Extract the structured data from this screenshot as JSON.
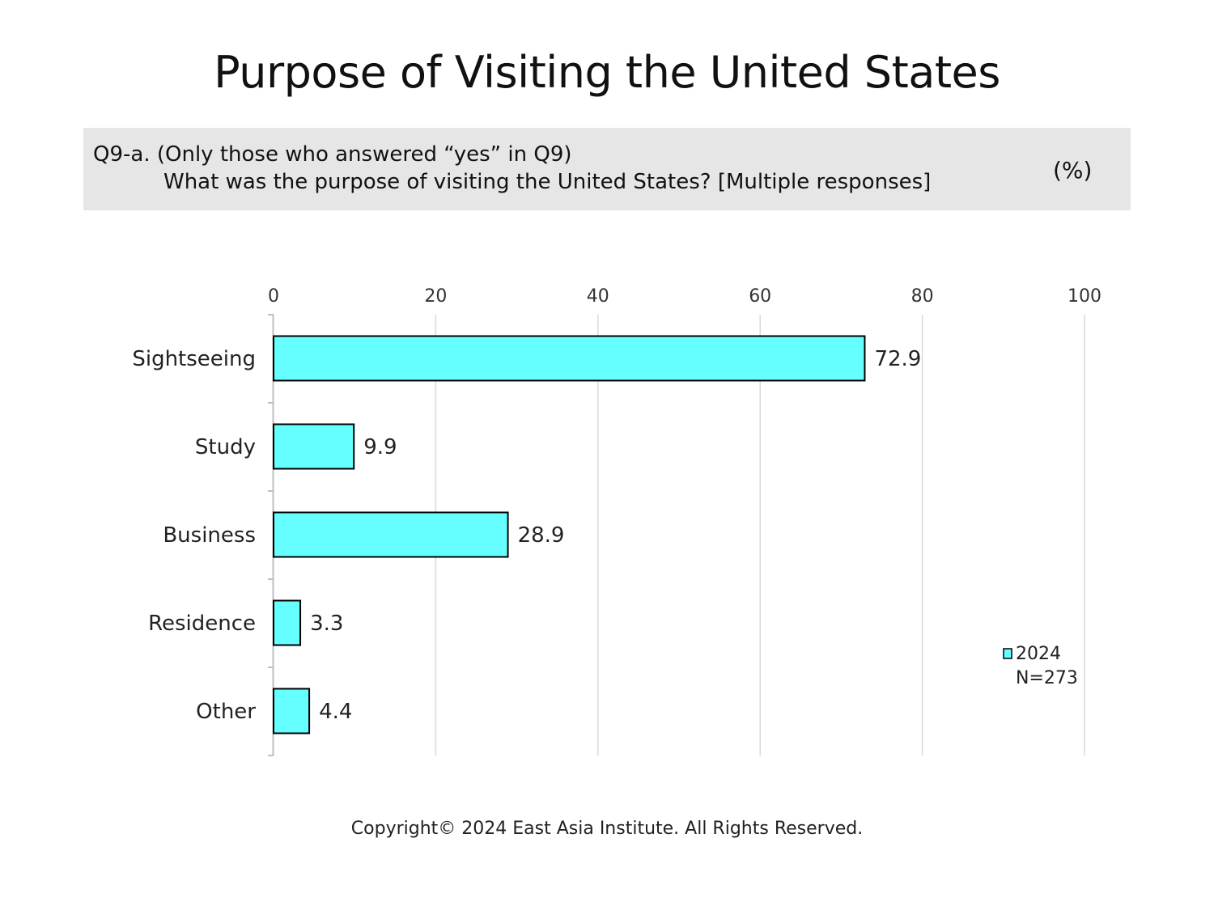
{
  "title": "Purpose of Visiting the United States",
  "question": {
    "line1": "Q9-a. (Only those who answered “yes” in Q9)",
    "line2": "What was the purpose of visiting the United States? [Multiple responses]",
    "unit": "(%)"
  },
  "chart_data": {
    "type": "bar",
    "orientation": "horizontal",
    "categories": [
      "Sightseeing",
      "Study",
      "Business",
      "Residence",
      "Other"
    ],
    "series": [
      {
        "name": "2024",
        "values": [
          72.9,
          9.9,
          28.9,
          3.3,
          4.4
        ]
      }
    ],
    "value_labels": [
      "72.9",
      "9.9",
      "28.9",
      "3.3",
      "4.4"
    ],
    "xlim": [
      0,
      100
    ],
    "ticks": [
      0,
      20,
      40,
      60,
      80,
      100
    ],
    "tick_labels": [
      "0",
      "20",
      "40",
      "60",
      "80",
      "100"
    ],
    "grid": true,
    "axis_position": "top",
    "legend": {
      "position": "bottom-right",
      "label": "2024",
      "note": "N=273"
    }
  },
  "colors": {
    "bar_fill": "#66ffff",
    "bar_stroke": "#000000",
    "grid": "#d9d9d9",
    "question_bg": "#e7e6e6"
  },
  "footer": {
    "copyright": "Copyright© 2024 East Asia Institute. All Rights Reserved."
  }
}
